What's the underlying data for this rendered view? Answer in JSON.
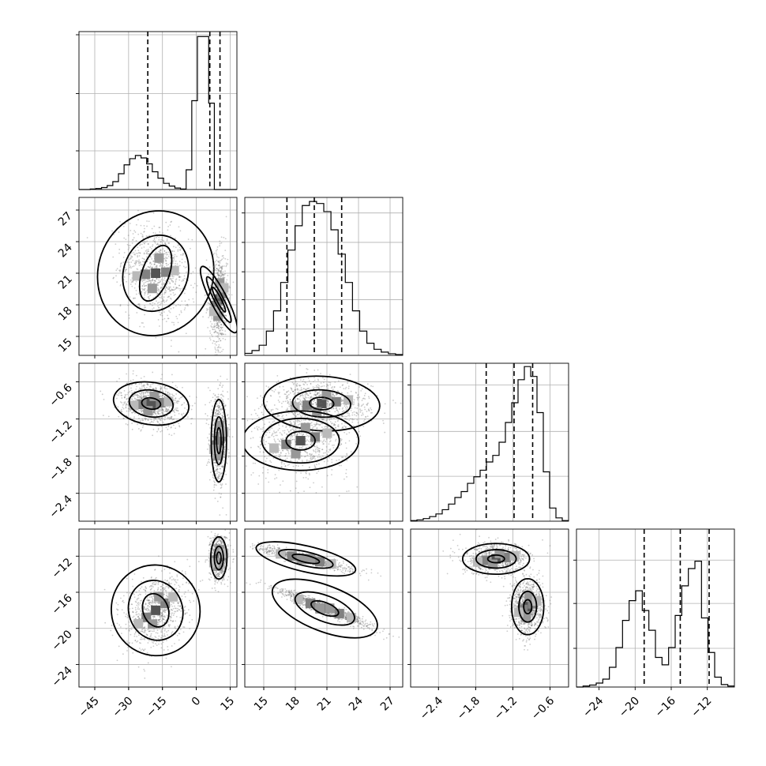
{
  "chart_data": {
    "type": "corner",
    "title": "",
    "grid": true,
    "params": [
      {
        "xlim": [
          -52,
          18
        ],
        "xticks": [
          -45,
          -30,
          -15,
          0,
          15
        ],
        "yticks": [
          15,
          18,
          21,
          24,
          27
        ],
        "ylim": [
          13.2,
          28.2
        ]
      },
      {
        "xlim": [
          13.2,
          28.2
        ],
        "xticks": [
          15,
          18,
          21,
          24,
          27
        ],
        "yticks": [
          -0.6,
          -1.2,
          -1.8,
          -2.4
        ],
        "ylim": [
          -2.85,
          -0.3
        ]
      },
      {
        "xlim": [
          -2.85,
          -0.3
        ],
        "xticks": [
          -2.4,
          -1.8,
          -1.2,
          -0.6
        ],
        "yticks": [
          -12,
          -16,
          -20,
          -24
        ],
        "ylim": [
          -26.5,
          -9.0
        ]
      },
      {
        "xlim": [
          -26.5,
          -9.0
        ],
        "xticks": [
          -24,
          -20,
          -16,
          -12
        ]
      }
    ],
    "tick_label_text": {
      "x0": [
        "−45",
        "−30",
        "−15",
        "0",
        "15"
      ],
      "x1": [
        "15",
        "18",
        "21",
        "24",
        "27"
      ],
      "x2": [
        "−2.4",
        "−1.8",
        "−1.2",
        "−0.6"
      ],
      "x3": [
        "−24",
        "−20",
        "−16",
        "−12"
      ],
      "y1": [
        "15",
        "18",
        "21",
        "24",
        "27"
      ],
      "y2": [
        "−0.6",
        "−1.2",
        "−1.8",
        "−2.4"
      ],
      "y3": [
        "−12",
        "−16",
        "−20",
        "−24"
      ]
    },
    "histograms": [
      {
        "param": 0,
        "bins": [
          -52,
          18
        ],
        "counts": [
          0,
          0,
          2,
          4,
          8,
          16,
          32,
          64,
          100,
          125,
          138,
          128,
          104,
          72,
          46,
          25,
          14,
          6,
          2,
          80,
          360,
          620,
          620,
          350,
          0,
          0,
          0,
          0
        ],
        "max_count": 640,
        "quantiles": [
          -21.5,
          6.0,
          10.5
        ]
      },
      {
        "param": 1,
        "bins": [
          13.2,
          28.2
        ],
        "counts": [
          5,
          12,
          25,
          60,
          110,
          180,
          260,
          320,
          370,
          380,
          375,
          355,
          310,
          250,
          180,
          110,
          60,
          30,
          15,
          8,
          4,
          2
        ],
        "max_count": 390,
        "quantiles": [
          17.2,
          19.8,
          22.4
        ]
      },
      {
        "param": 2,
        "bins": [
          -2.85,
          -0.3
        ],
        "counts": [
          2,
          4,
          8,
          14,
          22,
          35,
          52,
          72,
          90,
          115,
          135,
          155,
          180,
          200,
          240,
          300,
          360,
          430,
          470,
          440,
          330,
          150,
          40,
          10,
          2
        ],
        "max_count": 480,
        "quantiles": [
          -1.63,
          -1.18,
          -0.88
        ]
      },
      {
        "param": 3,
        "bins": [
          -26.5,
          -9.0
        ],
        "counts": [
          0,
          2,
          4,
          8,
          16,
          40,
          80,
          135,
          175,
          195,
          155,
          115,
          60,
          45,
          80,
          145,
          205,
          240,
          255,
          140,
          70,
          20,
          5,
          2
        ],
        "max_count": 320,
        "quantiles": [
          -19.0,
          -15.0,
          -11.8
        ]
      }
    ],
    "histogram_axis_ticks": [
      [
        1.0,
        0.62,
        0.25
      ],
      [
        0.92,
        0.73,
        0.54,
        0.36,
        0.17
      ],
      [
        0.88,
        0.58,
        0.29
      ],
      [
        0.82,
        0.54,
        0.25
      ]
    ],
    "scatter_panels": [
      {
        "row": 1,
        "col": 0,
        "modes": [
          {
            "center": [
              -18,
              21
            ],
            "sd": [
              7.5,
              2.3
            ],
            "corr": -0.25,
            "weight": 0.55,
            "contours": [
              [
                0.8,
                1.2
              ],
              [
                1.9,
                1.6
              ],
              [
                3.4,
                2.6
              ]
            ]
          },
          {
            "center": [
              10,
              18.5
            ],
            "sd": [
              2.0,
              2.2
            ],
            "corr": 0.1,
            "weight": 0.45,
            "contours": [
              [
                0.5,
                0.6
              ],
              [
                1.0,
                1.1
              ],
              [
                1.8,
                1.6
              ]
            ]
          }
        ]
      },
      {
        "row": 2,
        "col": 0,
        "modes": [
          {
            "center": [
              -20,
              -0.95
            ],
            "sd": [
              7.0,
              0.18
            ],
            "corr": -0.2,
            "weight": 0.55,
            "contours": [
              [
                0.6,
                0.5
              ],
              [
                1.4,
                1.2
              ],
              [
                2.4,
                1.9
              ]
            ]
          },
          {
            "center": [
              10,
              -1.55
            ],
            "sd": [
              2.0,
              0.35
            ],
            "corr": 0.0,
            "weight": 0.45,
            "contours": [
              [
                0.5,
                0.6
              ],
              [
                1.0,
                1.1
              ],
              [
                1.7,
                1.9
              ]
            ]
          }
        ]
      },
      {
        "row": 2,
        "col": 1,
        "modes": [
          {
            "center": [
              20.5,
              -0.95
            ],
            "sd": [
              2.3,
              0.2
            ],
            "corr": -0.1,
            "weight": 0.55,
            "contours": [
              [
                0.5,
                0.5
              ],
              [
                1.2,
                1.1
              ],
              [
                2.4,
                2.2
              ]
            ]
          },
          {
            "center": [
              18.5,
              -1.55
            ],
            "sd": [
              2.3,
              0.3
            ],
            "corr": 0.0,
            "weight": 0.45,
            "contours": [
              [
                0.6,
                0.5
              ],
              [
                1.6,
                1.2
              ],
              [
                2.4,
                1.6
              ]
            ]
          }
        ]
      },
      {
        "row": 3,
        "col": 0,
        "modes": [
          {
            "center": [
              -18,
              -18
            ],
            "sd": [
              7.0,
              2.1
            ],
            "corr": 0.3,
            "weight": 0.55,
            "contours": [
              [
                0.8,
                0.9
              ],
              [
                1.7,
                1.6
              ],
              [
                2.8,
                2.4
              ]
            ]
          },
          {
            "center": [
              10,
              -12.2
            ],
            "sd": [
              2.0,
              1.3
            ],
            "corr": 0.0,
            "weight": 0.45,
            "contours": [
              [
                0.5,
                0.5
              ],
              [
                1.0,
                1.0
              ],
              [
                1.8,
                1.8
              ]
            ]
          }
        ]
      },
      {
        "row": 3,
        "col": 1,
        "modes": [
          {
            "center": [
              19.0,
              -12.3
            ],
            "sd": [
              2.2,
              0.65
            ],
            "corr": -0.92,
            "weight": 0.45,
            "contours": [
              [
                0.6,
                0.6
              ],
              [
                1.2,
                1.2
              ],
              [
                2.2,
                2.2
              ]
            ]
          },
          {
            "center": [
              20.8,
              -17.8
            ],
            "sd": [
              2.3,
              1.1
            ],
            "corr": -0.95,
            "weight": 0.55,
            "contours": [
              [
                0.6,
                0.6
              ],
              [
                1.3,
                1.3
              ],
              [
                2.3,
                2.3
              ]
            ]
          }
        ]
      },
      {
        "row": 3,
        "col": 2,
        "modes": [
          {
            "center": [
              -1.47,
              -12.3
            ],
            "sd": [
              0.27,
              0.85
            ],
            "corr": 0.0,
            "weight": 0.45,
            "contours": [
              [
                0.5,
                0.5
              ],
              [
                1.2,
                1.2
              ],
              [
                2.0,
                2.0
              ]
            ]
          },
          {
            "center": [
              -0.96,
              -17.6
            ],
            "sd": [
              0.13,
              1.55
            ],
            "corr": 0.0,
            "weight": 0.55,
            "contours": [
              [
                0.5,
                0.5
              ],
              [
                1.1,
                1.1
              ],
              [
                2.0,
                2.0
              ]
            ]
          }
        ]
      }
    ]
  }
}
